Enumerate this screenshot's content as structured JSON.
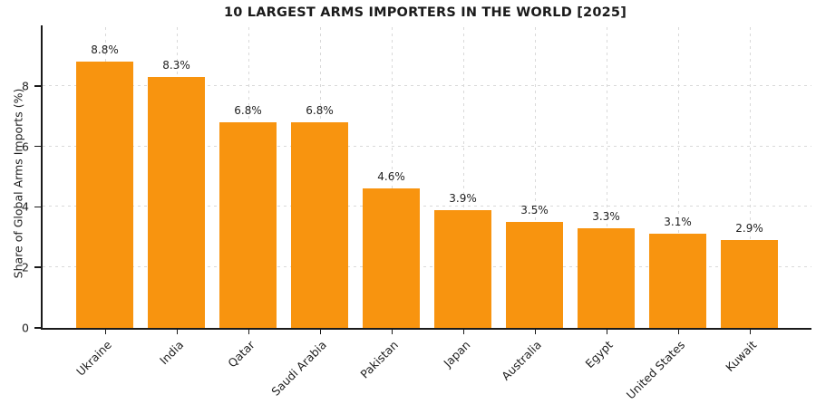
{
  "title": "10 LARGEST ARMS IMPORTERS IN THE WORLD [2025]",
  "ylabel": "Share of Global Arms Imports (%)",
  "colors": {
    "bar": "#f8940f",
    "grid": "#d9d9d9",
    "axis": "#1a1a1a",
    "text": "#1f1f1f",
    "background": "#ffffff"
  },
  "chart_data": {
    "type": "bar",
    "title": "10 LARGEST ARMS IMPORTERS IN THE WORLD [2025]",
    "xlabel": "",
    "ylabel": "Share of Global Arms Imports (%)",
    "categories": [
      "Ukraine",
      "India",
      "Qatar",
      "Saudi Arabia",
      "Pakistan",
      "Japan",
      "Australia",
      "Egypt",
      "United States",
      "Kuwait"
    ],
    "values": [
      8.8,
      8.3,
      6.8,
      6.8,
      4.6,
      3.9,
      3.5,
      3.3,
      3.1,
      2.9
    ],
    "bar_labels": [
      "8.8%",
      "8.3%",
      "6.8%",
      "6.8%",
      "4.6%",
      "3.9%",
      "3.5%",
      "3.3%",
      "3.1%",
      "2.9%"
    ],
    "ylim": [
      0,
      10
    ],
    "yticks": [
      0,
      2,
      4,
      6,
      8
    ],
    "grid": "dashed, horizontal and vertical",
    "legend_position": "none",
    "xtick_rotation": 45
  }
}
